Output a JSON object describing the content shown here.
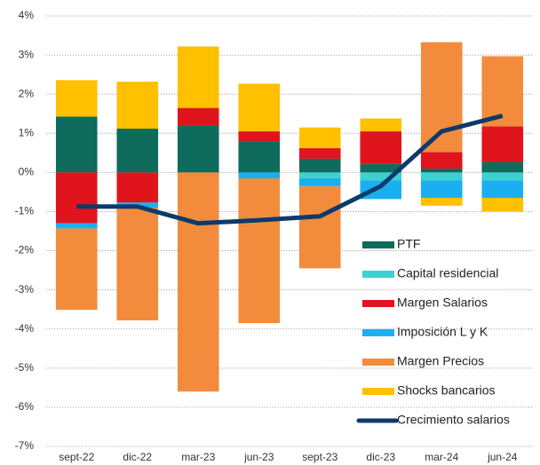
{
  "chart_data": {
    "type": "bar",
    "stacked": true,
    "categories": [
      "sept-22",
      "dic-22",
      "mar-23",
      "jun-23",
      "sept-23",
      "dic-23",
      "mar-24",
      "jun-24"
    ],
    "series": [
      {
        "name": "PTF",
        "color": "#0f6b5c",
        "values": [
          1.43,
          1.12,
          1.2,
          0.8,
          0.35,
          0.22,
          0.1,
          0.27
        ]
      },
      {
        "name": "Capital residencial",
        "color": "#3fd0d0",
        "values": [
          0,
          0,
          0,
          0,
          -0.15,
          -0.2,
          -0.2,
          -0.2
        ]
      },
      {
        "name": "Margen Salarios",
        "color": "#e0141c",
        "values": [
          -1.3,
          -0.77,
          0.45,
          0.25,
          0.27,
          0.83,
          0.42,
          0.91
        ]
      },
      {
        "name": "Imposición L y K",
        "color": "#1ab0f0",
        "values": [
          -0.13,
          -0.13,
          0,
          -0.15,
          -0.2,
          -0.48,
          -0.45,
          -0.45
        ]
      },
      {
        "name": "Margen Precios",
        "color": "#f28c3c",
        "values": [
          -2.08,
          -2.88,
          -5.6,
          -3.7,
          -2.1,
          0,
          2.81,
          1.79
        ]
      },
      {
        "name": "Shocks bancarios",
        "color": "#ffc000",
        "values": [
          0.93,
          1.2,
          1.57,
          1.22,
          0.53,
          0.33,
          -0.2,
          -0.35
        ]
      },
      {
        "name": "Crecimiento salarios",
        "color": "#0b3a6b",
        "type": "line",
        "values": [
          -0.87,
          -0.87,
          -1.3,
          -1.22,
          -1.12,
          -0.35,
          1.05,
          1.45
        ]
      }
    ],
    "ylim": [
      -7,
      4
    ],
    "yticks": [
      {
        "value": -7,
        "label": "-7%"
      },
      {
        "value": -6,
        "label": "-6%"
      },
      {
        "value": -5,
        "label": "-5%"
      },
      {
        "value": -4,
        "label": "-4%"
      },
      {
        "value": -3,
        "label": "-3%"
      },
      {
        "value": -2,
        "label": "-2%"
      },
      {
        "value": -1,
        "label": "-1%"
      },
      {
        "value": 0,
        "label": "0%"
      },
      {
        "value": 1,
        "label": "1%"
      },
      {
        "value": 2,
        "label": "2%"
      },
      {
        "value": 3,
        "label": "3%"
      },
      {
        "value": 4,
        "label": "4%"
      }
    ],
    "grid": true,
    "legend": "lower right"
  }
}
